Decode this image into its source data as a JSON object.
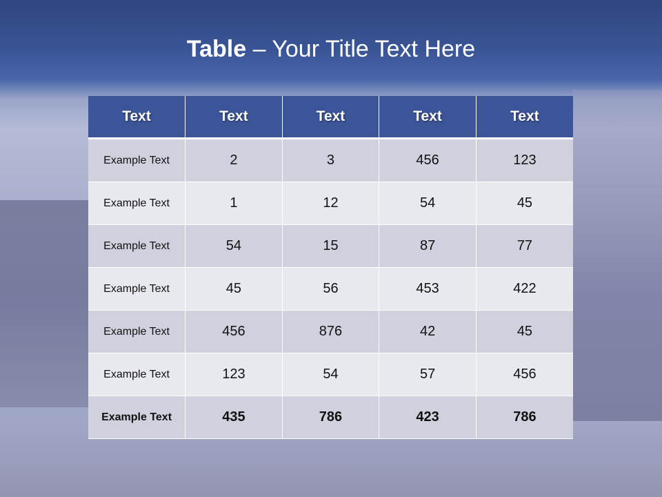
{
  "title": {
    "bold": "Table",
    "rest": " – Your Title Text Here"
  },
  "table": {
    "headers": [
      "Text",
      "Text",
      "Text",
      "Text",
      "Text"
    ],
    "rows": [
      [
        "Example Text",
        "2",
        "3",
        "456",
        "123"
      ],
      [
        "Example Text",
        "1",
        "12",
        "54",
        "45"
      ],
      [
        "Example Text",
        "54",
        "15",
        "87",
        "77"
      ],
      [
        "Example Text",
        "45",
        "56",
        "453",
        "422"
      ],
      [
        "Example Text",
        "456",
        "876",
        "42",
        "45"
      ],
      [
        "Example Text",
        "123",
        "54",
        "57",
        "456"
      ],
      [
        "Example Text",
        "435",
        "786",
        "423",
        "786"
      ]
    ]
  },
  "colors": {
    "header": "#3c5599",
    "row_dark": "#cfd2de",
    "row_light": "#e8e9ef"
  }
}
